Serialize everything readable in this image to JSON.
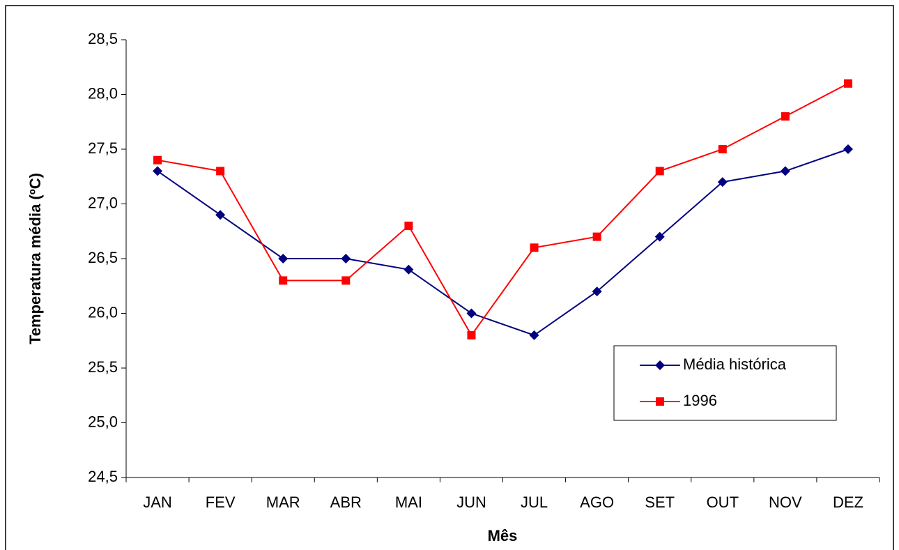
{
  "chart_data": {
    "type": "line",
    "x_label": "Mês",
    "y_label": "Temperatura média (ºC)",
    "categories": [
      "JAN",
      "FEV",
      "MAR",
      "ABR",
      "MAI",
      "JUN",
      "JUL",
      "AGO",
      "SET",
      "OUT",
      "NOV",
      "DEZ"
    ],
    "series": [
      {
        "name": "Média histórica",
        "color": "#000080",
        "marker": "diamond",
        "values": [
          27.3,
          26.9,
          26.5,
          26.5,
          26.4,
          26.0,
          25.8,
          26.2,
          26.7,
          27.2,
          27.3,
          27.5
        ]
      },
      {
        "name": "1996",
        "color": "#ff0000",
        "marker": "square",
        "values": [
          27.4,
          27.3,
          26.3,
          26.3,
          26.8,
          25.8,
          26.6,
          26.7,
          27.3,
          27.5,
          27.8,
          28.1
        ]
      }
    ],
    "ylim": [
      24.5,
      28.5
    ],
    "yticks": [
      {
        "value": 24.5,
        "label": "24,5"
      },
      {
        "value": 25,
        "label": "25,0"
      },
      {
        "value": 25.5,
        "label": "25,5"
      },
      {
        "value": 26,
        "label": "26,0"
      },
      {
        "value": 26.5,
        "label": "26,5"
      },
      {
        "value": 27,
        "label": "27,0"
      },
      {
        "value": 27.5,
        "label": "27,5"
      },
      {
        "value": 28,
        "label": "28,0"
      },
      {
        "value": 28.5,
        "label": "28,5"
      }
    ],
    "grid": false,
    "legend": "lower right"
  }
}
